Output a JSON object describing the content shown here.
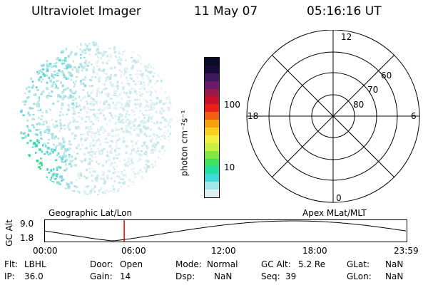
{
  "header": {
    "instrument": "Ultraviolet Imager",
    "date": "11 May 07",
    "time": "05:16:16 UT"
  },
  "colorbar": {
    "label": "photon cm⁻²s⁻¹",
    "ticks": [
      "100",
      "10"
    ],
    "colors": [
      "#0a0a2a",
      "#1a0a3a",
      "#3a1a5a",
      "#6a1a6a",
      "#9a1a4a",
      "#c8102a",
      "#e8201a",
      "#f06010",
      "#f8a010",
      "#f8d020",
      "#f0f040",
      "#c8f040",
      "#80e840",
      "#40e060",
      "#20e0a0",
      "#40d8d8",
      "#a0e8e8",
      "#e0f0f0"
    ]
  },
  "polar": {
    "mlt_labels": {
      "top": "12",
      "bottom": "0",
      "left": "18",
      "right": "6"
    },
    "lat_labels": [
      "60",
      "70",
      "80"
    ]
  },
  "timeline": {
    "left_label": "Geographic Lat/Lon",
    "right_label": "Apex MLat/MLT",
    "yaxis_label": "GC Alt",
    "ytick_top": "9.0",
    "ytick_bottom": "1.8",
    "xticks": [
      "00:00",
      "06:00",
      "12:00",
      "18:00",
      "23:59"
    ],
    "marker_time_hours": 5.27,
    "marker_color": "#e00000"
  },
  "info": {
    "flt_label": "Flt:",
    "flt_value": "LBHL",
    "ip_label": "IP:",
    "ip_value": "36.0",
    "door_label": "Door:",
    "door_value": "Open",
    "gain_label": "Gain:",
    "gain_value": "14",
    "mode_label": "Mode:",
    "mode_value": "Normal",
    "dsp_label": "Dsp:",
    "dsp_value": "NaN",
    "gcalt_label": "GC Alt:",
    "gcalt_value": "5.2 Re",
    "seq_label": "Seq:",
    "seq_value": "39",
    "glat_label": "GLat:",
    "glat_value": "NaN",
    "glon_label": "GLon:",
    "glon_value": "NaN"
  }
}
